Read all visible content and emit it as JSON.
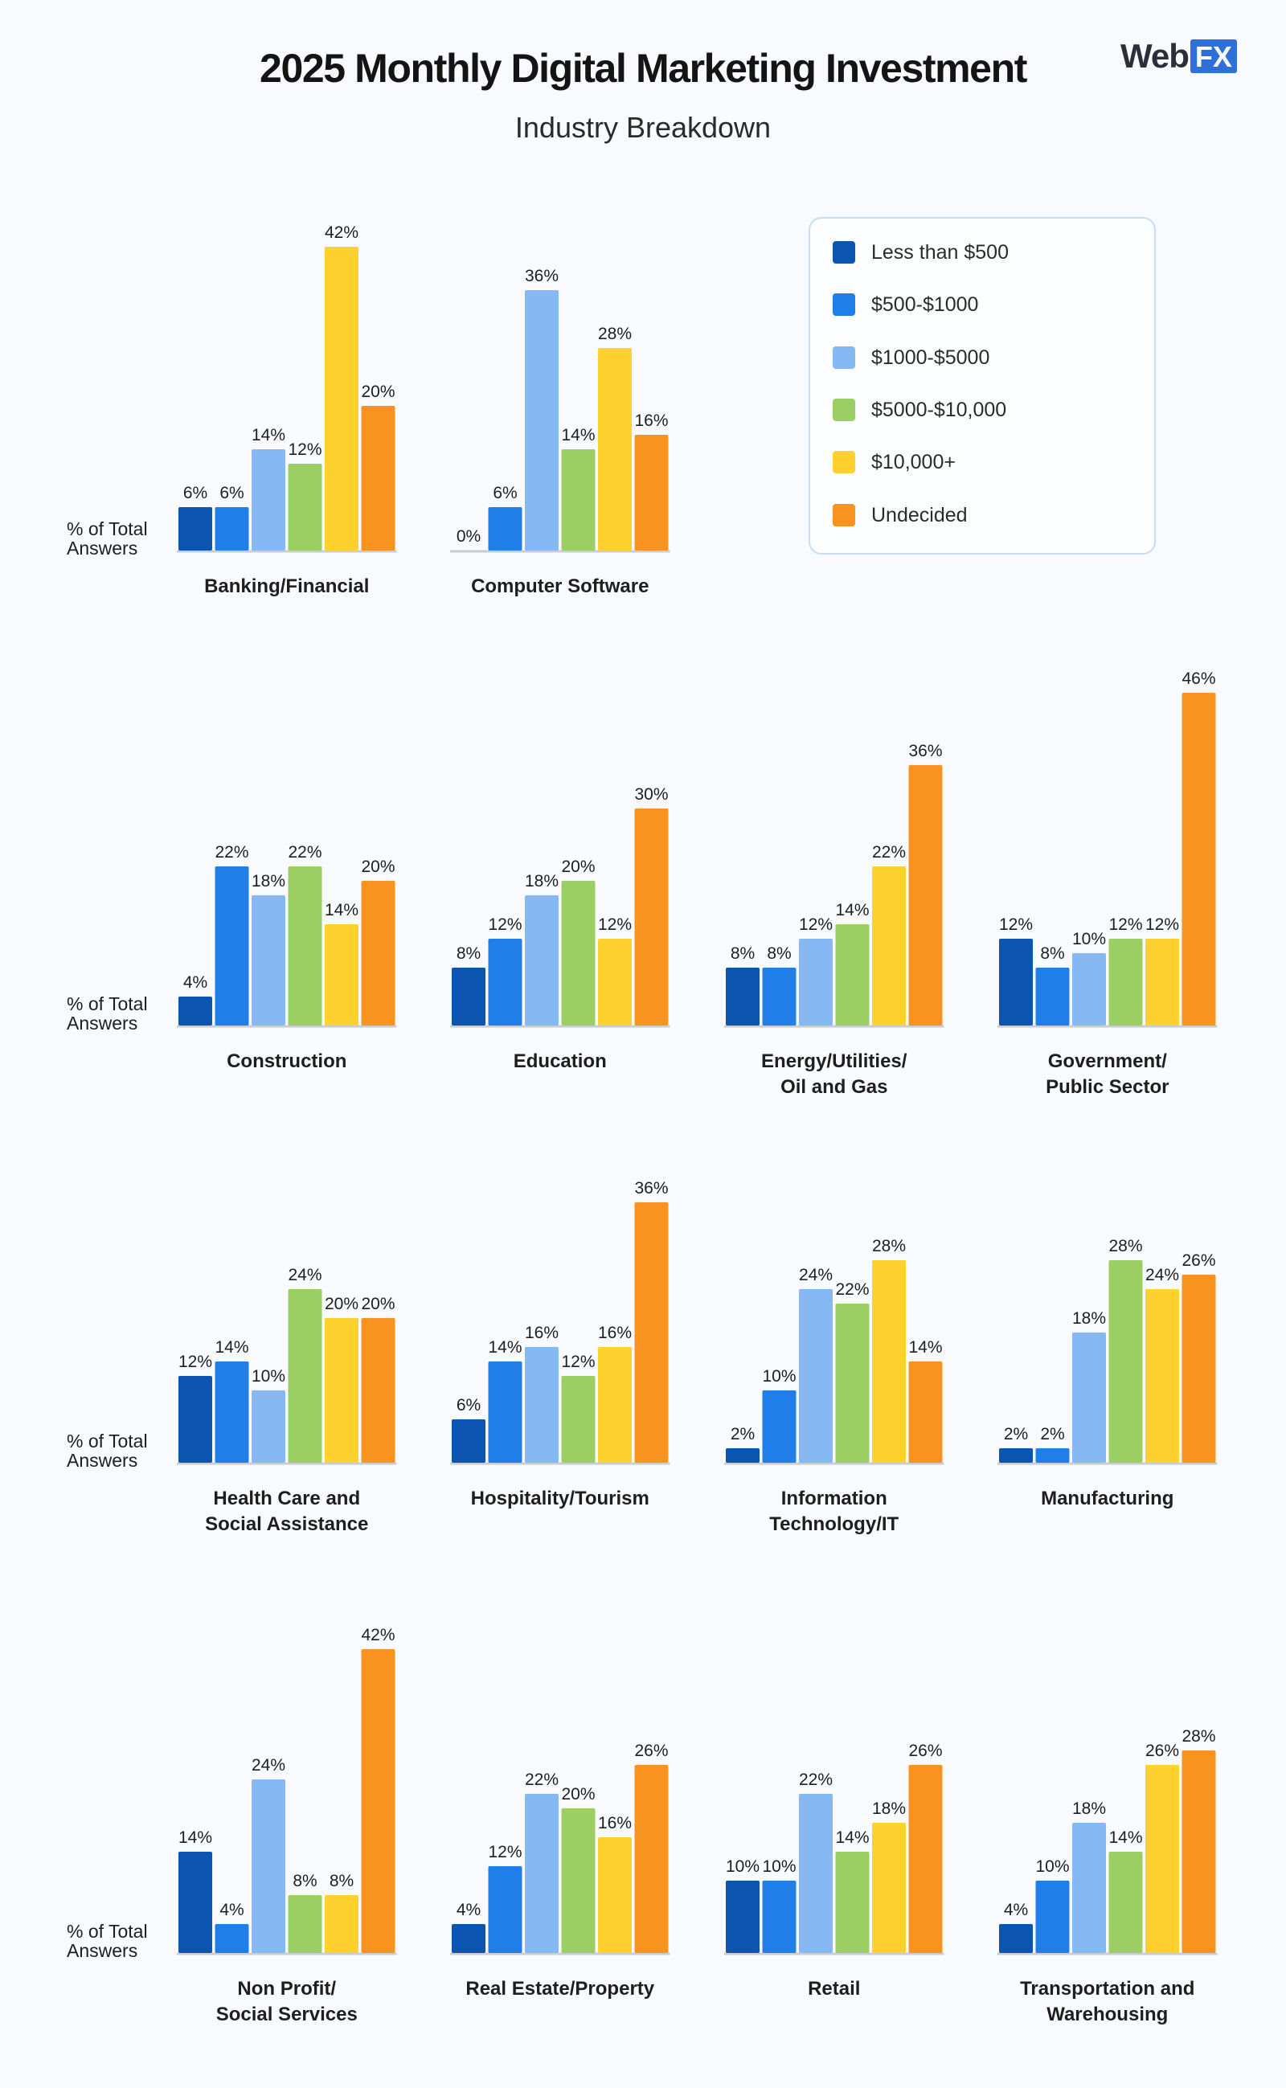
{
  "title": "2025 Monthly Digital Marketing Investment",
  "subtitle": "Industry Breakdown",
  "logo": {
    "text": "Web",
    "box": "FX"
  },
  "colors": [
    "#0b55b0",
    "#1f7ee8",
    "#86b8f3",
    "#9ccf63",
    "#ffd12e",
    "#f7931e"
  ],
  "legend": [
    "Less than $500",
    "$500-$1000",
    "$1000-$5000",
    "$5000-$10,000",
    "$10,000+",
    "Undecided"
  ],
  "chart_data": {
    "type": "bar",
    "title": "2025 Monthly Digital Marketing Investment",
    "subtitle": "Industry Breakdown",
    "ylabel": "% of Total Answers",
    "ylim": [
      0,
      46
    ],
    "series_names": [
      "Less than $500",
      "$500-$1000",
      "$1000-$5000",
      "$5000-$10,000",
      "$10,000+",
      "Undecided"
    ],
    "panels": [
      {
        "label": [
          "Banking/Financial"
        ],
        "values": [
          6,
          6,
          14,
          12,
          42,
          20
        ]
      },
      {
        "label": [
          "Computer Software"
        ],
        "values": [
          0,
          6,
          36,
          14,
          28,
          16
        ]
      },
      {
        "label": [
          "Construction"
        ],
        "values": [
          4,
          22,
          18,
          22,
          14,
          20
        ]
      },
      {
        "label": [
          "Education"
        ],
        "values": [
          8,
          12,
          18,
          20,
          12,
          30
        ]
      },
      {
        "label": [
          "Energy/Utilities/",
          "Oil and Gas"
        ],
        "values": [
          8,
          8,
          12,
          14,
          22,
          36
        ]
      },
      {
        "label": [
          "Government/",
          "Public Sector"
        ],
        "values": [
          12,
          8,
          10,
          12,
          12,
          46
        ]
      },
      {
        "label": [
          "Health Care and",
          "Social Assistance"
        ],
        "values": [
          12,
          14,
          10,
          24,
          20,
          20
        ]
      },
      {
        "label": [
          "Hospitality/Tourism"
        ],
        "values": [
          6,
          14,
          16,
          12,
          16,
          36
        ]
      },
      {
        "label": [
          "Information",
          "Technology/IT"
        ],
        "values": [
          2,
          10,
          24,
          22,
          28,
          14
        ]
      },
      {
        "label": [
          "Manufacturing"
        ],
        "values": [
          2,
          2,
          18,
          28,
          24,
          26
        ]
      },
      {
        "label": [
          "Non Profit/",
          "Social Services"
        ],
        "values": [
          14,
          4,
          24,
          8,
          8,
          42
        ]
      },
      {
        "label": [
          "Real Estate/Property"
        ],
        "values": [
          4,
          12,
          22,
          20,
          16,
          26
        ]
      },
      {
        "label": [
          "Retail"
        ],
        "values": [
          10,
          10,
          22,
          14,
          18,
          26
        ]
      },
      {
        "label": [
          "Transportation and",
          "Warehousing"
        ],
        "values": [
          4,
          10,
          18,
          14,
          26,
          28
        ]
      }
    ],
    "axis_label_lines": [
      "% of Total",
      "Answers"
    ]
  }
}
